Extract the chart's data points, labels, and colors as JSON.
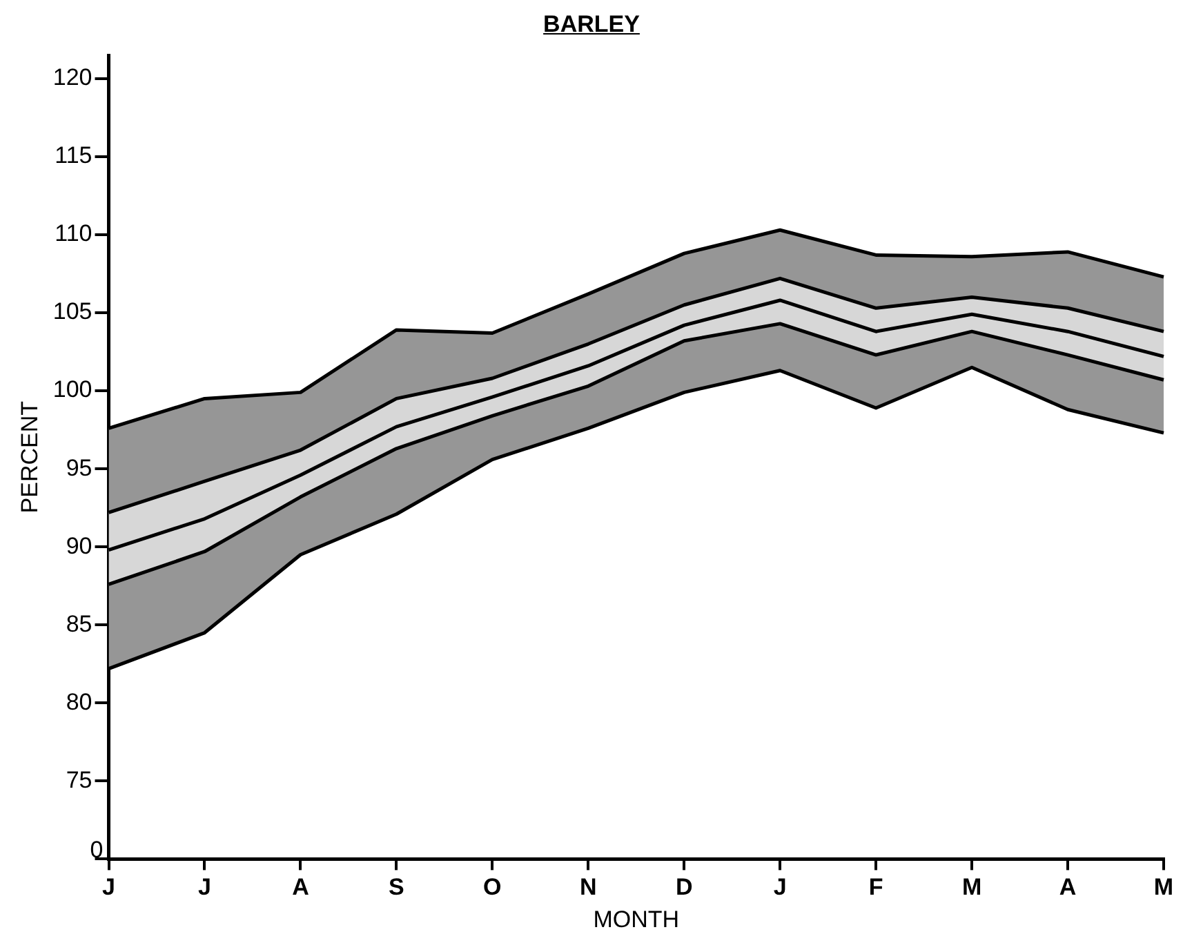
{
  "chart_data": {
    "type": "line",
    "title": "BARLEY",
    "xlabel": "MONTH",
    "ylabel": "PERCENT",
    "categories": [
      "J",
      "J",
      "A",
      "S",
      "O",
      "N",
      "D",
      "J",
      "F",
      "M",
      "A",
      "M"
    ],
    "series": [
      {
        "color": "#000000",
        "values": [
          89.8,
          91.8,
          94.6,
          97.7,
          99.6,
          101.6,
          104.2,
          105.8,
          103.8,
          104.9,
          103.8,
          102.2
        ],
        "lower": [
          87.6,
          89.7,
          93.2,
          96.3,
          98.4,
          100.3,
          103.2,
          104.3,
          102.3,
          103.8,
          102.3,
          100.7
        ],
        "upper": [
          92.2,
          94.2,
          96.2,
          99.5,
          100.8,
          103.0,
          105.5,
          107.2,
          105.3,
          106.0,
          105.3,
          103.8
        ]
      },
      {
        "color": "#000000",
        "values": [
          null,
          null,
          null,
          null,
          null,
          null,
          null,
          null,
          null,
          null,
          null,
          null
        ],
        "lower": [
          82.2,
          84.5,
          89.5,
          92.1,
          95.6,
          97.6,
          99.9,
          101.3,
          98.9,
          101.5,
          98.8,
          97.3
        ],
        "upper": [
          97.6,
          99.5,
          99.9,
          103.9,
          103.7,
          106.2,
          108.8,
          110.3,
          108.7,
          108.6,
          108.9,
          107.3
        ]
      },
      {
        "color": "#000000",
        "values": [
          97.6,
          99.5,
          99.9,
          103.9,
          103.7,
          106.2,
          108.8,
          110.3,
          108.7,
          108.6,
          108.9,
          107.3
        ]
      },
      {
        "color": "#000000",
        "values": [
          82.2,
          84.5,
          89.5,
          92.1,
          95.6,
          97.6,
          99.9,
          101.3,
          98.9,
          101.5,
          98.8,
          97.3
        ]
      },
      {
        "color": "#000000",
        "values": [
          92.2,
          94.2,
          96.2,
          99.5,
          100.8,
          103.0,
          105.5,
          107.2,
          105.3,
          106.0,
          105.3,
          103.8
        ]
      },
      {
        "color": "#000000",
        "values": [
          87.6,
          89.7,
          93.2,
          96.3,
          98.4,
          100.3,
          103.2,
          104.3,
          102.3,
          103.8,
          102.3,
          100.7
        ]
      }
    ],
    "ylim": [
      70,
      121.5
    ],
    "yticks": [
      {
        "value": 70,
        "label": null
      },
      75,
      80,
      85,
      90,
      95,
      100,
      105,
      110,
      115,
      120
    ],
    "annotations": [
      "0"
    ],
    "grid": false,
    "legend": false,
    "marker": "none",
    "line_style": "solid"
  }
}
